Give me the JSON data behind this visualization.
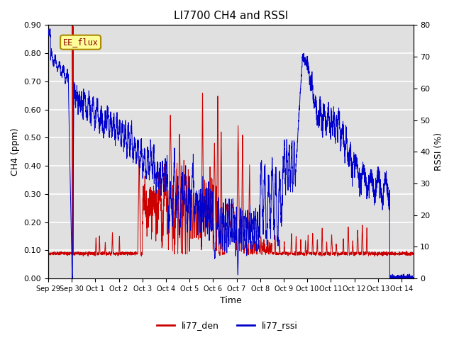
{
  "title": "LI7700 CH4 and RSSI",
  "xlabel": "Time",
  "ylabel_left": "CH4 (ppm)",
  "ylabel_right": "RSSI (%)",
  "ylim_left": [
    0.0,
    0.9
  ],
  "ylim_right": [
    0,
    80
  ],
  "yticks_left": [
    0.0,
    0.1,
    0.2,
    0.3,
    0.4,
    0.5,
    0.6,
    0.7,
    0.8,
    0.9
  ],
  "yticks_right": [
    0,
    10,
    20,
    30,
    40,
    50,
    60,
    70,
    80
  ],
  "color_red": "#CC0000",
  "color_blue": "#0000CC",
  "annotation_text": "EE_flux",
  "annotation_bg": "#FFFF99",
  "annotation_border": "#AA8800",
  "legend_labels": [
    "li77_den",
    "li77_rssi"
  ],
  "background_color": "#E0E0E0",
  "n_points": 3000
}
